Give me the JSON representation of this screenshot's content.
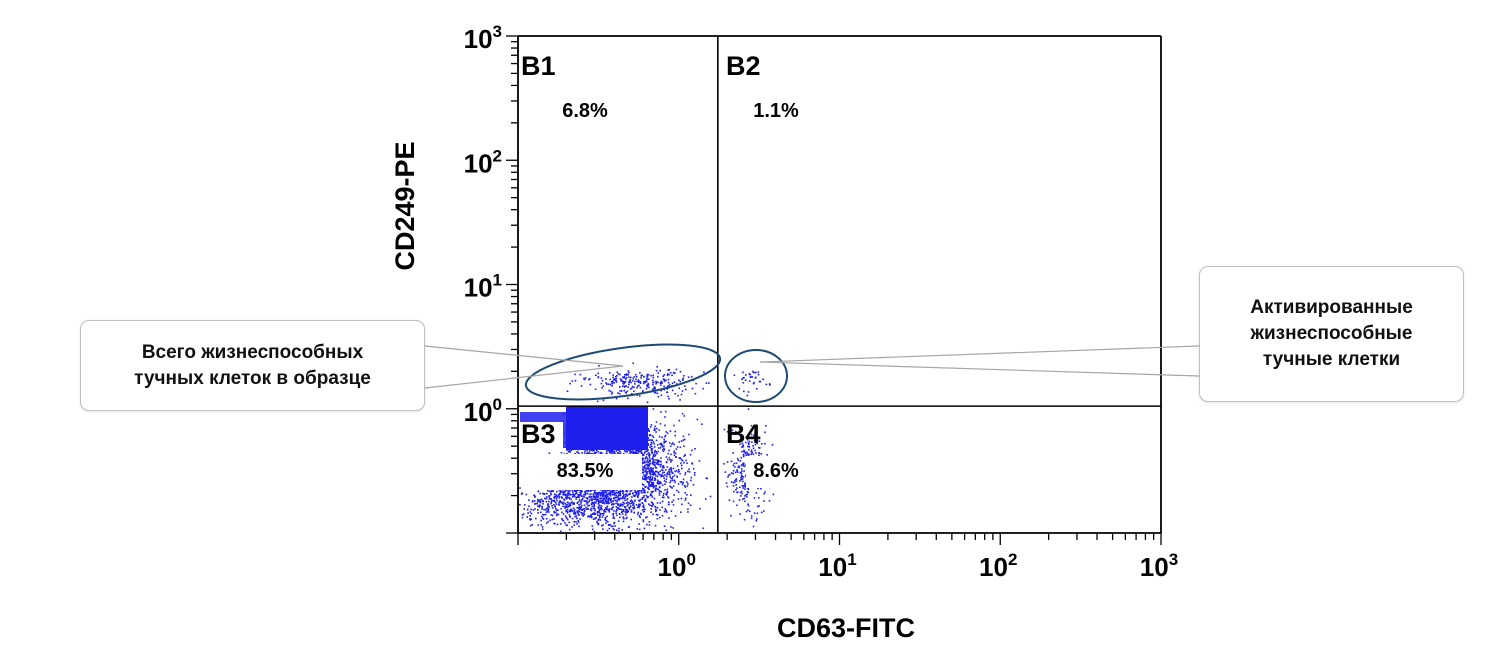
{
  "chart_data": {
    "type": "scatter",
    "xlabel": "CD63-FITC",
    "ylabel": "CD249-PE",
    "x_scale": "log",
    "y_scale": "log",
    "xlim": [
      0.1,
      1000
    ],
    "ylim": [
      0.1,
      1000
    ],
    "x_ticks": [
      {
        "base": "10",
        "exp": "0",
        "value": 1
      },
      {
        "base": "10",
        "exp": "1",
        "value": 10
      },
      {
        "base": "10",
        "exp": "2",
        "value": 100
      },
      {
        "base": "10",
        "exp": "3",
        "value": 1000
      }
    ],
    "y_ticks": [
      {
        "base": "10",
        "exp": "0",
        "value": 1
      },
      {
        "base": "10",
        "exp": "1",
        "value": 10
      },
      {
        "base": "10",
        "exp": "2",
        "value": 100
      },
      {
        "base": "10",
        "exp": "3",
        "value": 1000
      }
    ],
    "gate_x": 1.75,
    "gate_y": 1.05,
    "quadrants": [
      {
        "name": "B1",
        "percent": "6.8%",
        "position": "top-left"
      },
      {
        "name": "B2",
        "percent": "1.1%",
        "position": "top-right"
      },
      {
        "name": "B3",
        "percent": "83.5%",
        "position": "bottom-left"
      },
      {
        "name": "B4",
        "percent": "8.6%",
        "position": "bottom-right"
      }
    ],
    "point_color": "#2020ee",
    "grid": false
  },
  "annotations": {
    "left": {
      "lines": [
        "Всего жизнеспособных",
        "тучных клеток в образце"
      ]
    },
    "right": {
      "lines": [
        "Активированные",
        "жизнеспособные",
        "тучные клетки"
      ]
    }
  },
  "colors": {
    "axis": "#000000",
    "ellipse": "#1f4a73",
    "leader_line": "#a6a6a6",
    "text": "#000000"
  }
}
